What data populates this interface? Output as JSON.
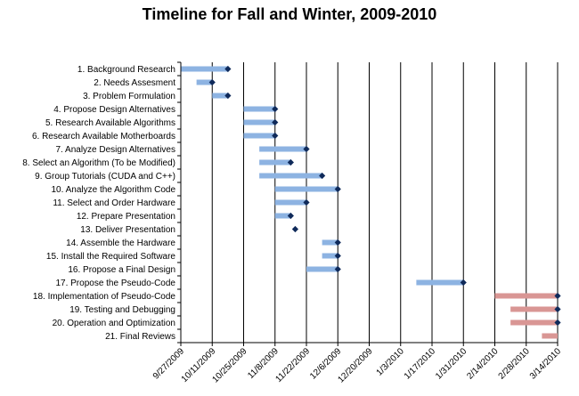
{
  "chart_data": {
    "type": "bar",
    "title": "Timeline for Fall and Winter, 2009-2010",
    "x_ticks": [
      "9/27/2009",
      "10/11/2009",
      "10/25/2009",
      "11/8/2009",
      "11/22/2009",
      "12/6/2009",
      "12/20/2009",
      "1/3/2010",
      "1/17/2010",
      "1/31/2010",
      "2/14/2010",
      "2/28/2010",
      "3/14/2010"
    ],
    "xlim": [
      "9/27/2009",
      "3/14/2010"
    ],
    "grid": true,
    "colors": {
      "fall": "#8DB3E2",
      "winter": "#D99694",
      "marker": "#0F2A5A"
    },
    "tasks": [
      {
        "label": "1. Background Research",
        "start": "9/27/2009",
        "end": "10/18/2009",
        "group": "fall",
        "milestone": true
      },
      {
        "label": "2. Needs Assesment",
        "start": "10/4/2009",
        "end": "10/11/2009",
        "group": "fall",
        "milestone": true
      },
      {
        "label": "3. Problem Formulation",
        "start": "10/11/2009",
        "end": "10/18/2009",
        "group": "fall",
        "milestone": true
      },
      {
        "label": "4. Propose Design Alternatives",
        "start": "10/25/2009",
        "end": "11/8/2009",
        "group": "fall",
        "milestone": true
      },
      {
        "label": "5. Research Available Algorithms",
        "start": "10/25/2009",
        "end": "11/8/2009",
        "group": "fall",
        "milestone": true
      },
      {
        "label": "6. Research Available Motherboards",
        "start": "10/25/2009",
        "end": "11/8/2009",
        "group": "fall",
        "milestone": true
      },
      {
        "label": "7. Analyze Design Alternatives",
        "start": "11/1/2009",
        "end": "11/22/2009",
        "group": "fall",
        "milestone": true
      },
      {
        "label": "8. Select an Algorithm (To be Modified)",
        "start": "11/1/2009",
        "end": "11/15/2009",
        "group": "fall",
        "milestone": true
      },
      {
        "label": "9. Group Tutorials (CUDA and C++)",
        "start": "11/1/2009",
        "end": "11/29/2009",
        "group": "fall",
        "milestone": true
      },
      {
        "label": "10. Analyze the Algorithm Code",
        "start": "11/8/2009",
        "end": "12/6/2009",
        "group": "fall",
        "milestone": true
      },
      {
        "label": "11. Select and Order Hardware",
        "start": "11/8/2009",
        "end": "11/22/2009",
        "group": "fall",
        "milestone": true
      },
      {
        "label": "12. Prepare Presentation",
        "start": "11/8/2009",
        "end": "11/15/2009",
        "group": "fall",
        "milestone": true
      },
      {
        "label": "13. Deliver Presentation",
        "start": "11/17/2009",
        "end": "11/17/2009",
        "group": "fall",
        "milestone": true
      },
      {
        "label": "14. Assemble the Hardware",
        "start": "11/29/2009",
        "end": "12/6/2009",
        "group": "fall",
        "milestone": true
      },
      {
        "label": "15. Install the Required Software",
        "start": "11/29/2009",
        "end": "12/6/2009",
        "group": "fall",
        "milestone": true
      },
      {
        "label": "16. Propose a Final Design",
        "start": "11/22/2009",
        "end": "12/6/2009",
        "group": "fall",
        "milestone": true
      },
      {
        "label": "17. Propose the Pseudo-Code",
        "start": "1/10/2010",
        "end": "1/31/2010",
        "group": "fall",
        "milestone": true
      },
      {
        "label": "18. Implementation of Pseudo-Code",
        "start": "2/14/2010",
        "end": "3/14/2010",
        "group": "winter",
        "milestone": true
      },
      {
        "label": "19. Testing and Debugging",
        "start": "2/21/2010",
        "end": "3/14/2010",
        "group": "winter",
        "milestone": true
      },
      {
        "label": "20. Operation and  Optimization",
        "start": "2/21/2010",
        "end": "3/14/2010",
        "group": "winter",
        "milestone": true
      },
      {
        "label": "21. Final Reviews",
        "start": "3/7/2010",
        "end": "3/14/2010",
        "group": "winter",
        "milestone": false
      }
    ]
  }
}
